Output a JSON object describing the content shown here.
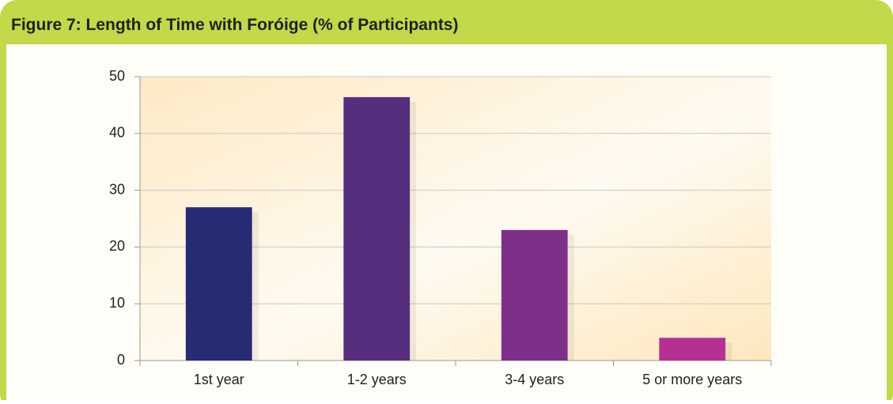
{
  "chart_data": {
    "type": "bar",
    "figure_label": "Figure 7:",
    "title": "Length of Time with Foróige (% of Participants)",
    "categories": [
      "1st year",
      "1-2 years",
      "3-4 years",
      "5 or more years"
    ],
    "values": [
      27,
      46.4,
      23,
      4
    ],
    "colors": [
      "#262b74",
      "#552e7d",
      "#7e3088",
      "#b53093"
    ],
    "ylim": [
      0,
      50
    ],
    "yticks": [
      0,
      10,
      20,
      30,
      40,
      50
    ],
    "grid": true
  }
}
